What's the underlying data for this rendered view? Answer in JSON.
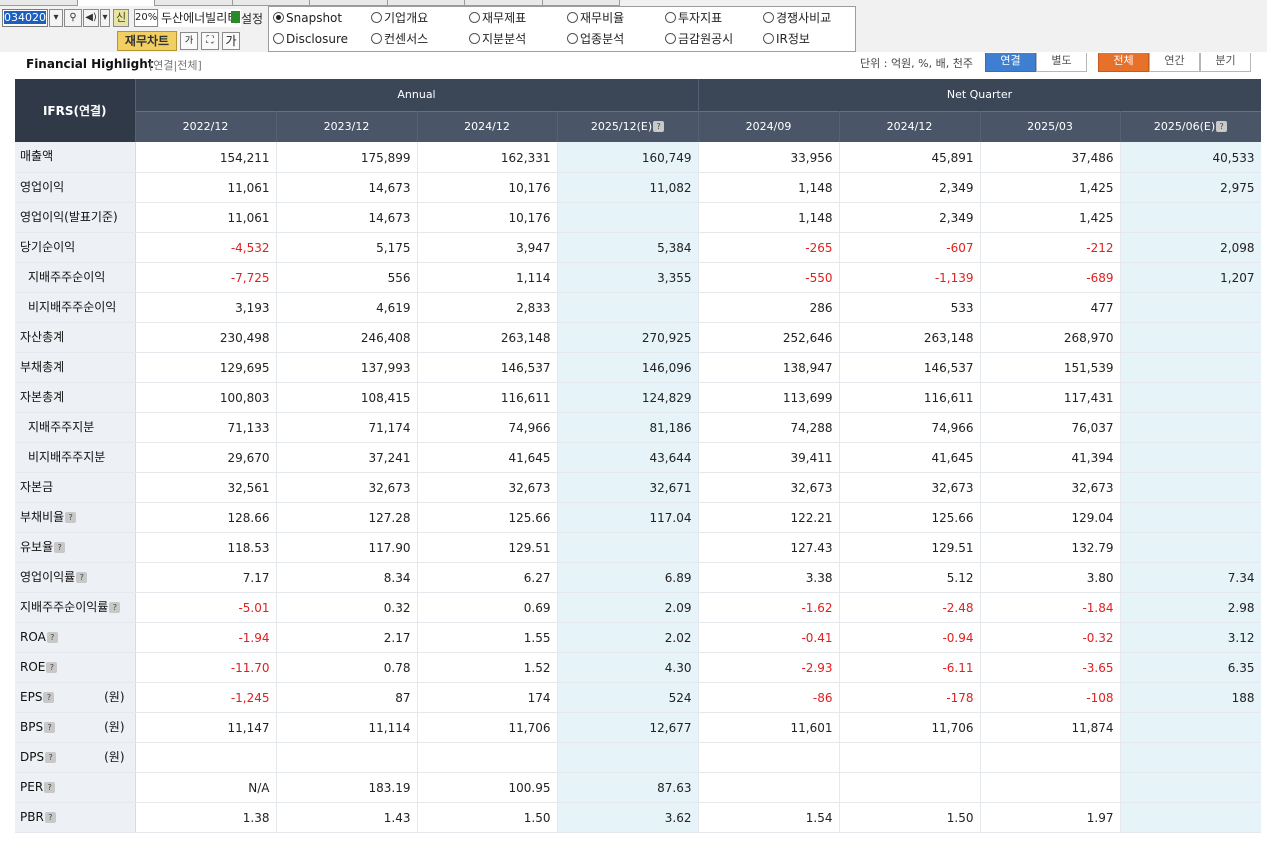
{
  "toolbar": {
    "stock_code": "034020",
    "s_label": "신",
    "pct_label": "20%",
    "stock_name": "두산에너빌리티",
    "setting_label": "설정",
    "fin_chart_label": "재무차트",
    "tool_font_small": "가",
    "tool_font_large": "가",
    "radios": [
      {
        "label": "Snapshot",
        "selected": true
      },
      {
        "label": "기업개요",
        "selected": false
      },
      {
        "label": "재무제표",
        "selected": false
      },
      {
        "label": "재무비율",
        "selected": false
      },
      {
        "label": "투자지표",
        "selected": false
      },
      {
        "label": "경쟁사비교",
        "selected": false
      },
      {
        "label": "Disclosure",
        "selected": false
      },
      {
        "label": "컨센서스",
        "selected": false
      },
      {
        "label": "지분분석",
        "selected": false
      },
      {
        "label": "업종분석",
        "selected": false
      },
      {
        "label": "금감원공시",
        "selected": false
      },
      {
        "label": "IR정보",
        "selected": false
      }
    ]
  },
  "header": {
    "title": "Financial Highlight",
    "subtitle": "[연결|전체]",
    "unit": "단위 : 억원, %, 배, 천주",
    "seg_consolidated": "연결",
    "seg_separate": "별도",
    "seg_all": "전체",
    "seg_annual": "연간",
    "seg_quarter": "분기"
  },
  "table": {
    "corner": "IFRS(연결)",
    "groups": [
      "Annual",
      "Net Quarter"
    ],
    "periods": [
      "2022/12",
      "2023/12",
      "2024/12",
      "2025/12(E)",
      "2024/09",
      "2024/12",
      "2025/03",
      "2025/06(E)"
    ],
    "rows": [
      {
        "label": "매출액",
        "values": [
          "154,211",
          "175,899",
          "162,331",
          "160,749",
          "33,956",
          "45,891",
          "37,486",
          "40,533"
        ]
      },
      {
        "label": "영업이익",
        "values": [
          "11,061",
          "14,673",
          "10,176",
          "11,082",
          "1,148",
          "2,349",
          "1,425",
          "2,975"
        ]
      },
      {
        "label": "영업이익(발표기준)",
        "values": [
          "11,061",
          "14,673",
          "10,176",
          "",
          "1,148",
          "2,349",
          "1,425",
          ""
        ]
      },
      {
        "label": "당기순이익",
        "values": [
          "-4,532",
          "5,175",
          "3,947",
          "5,384",
          "-265",
          "-607",
          "-212",
          "2,098"
        ]
      },
      {
        "label": "지배주주순이익",
        "indent": true,
        "values": [
          "-7,725",
          "556",
          "1,114",
          "3,355",
          "-550",
          "-1,139",
          "-689",
          "1,207"
        ]
      },
      {
        "label": "비지배주주순이익",
        "indent": true,
        "values": [
          "3,193",
          "4,619",
          "2,833",
          "",
          "286",
          "533",
          "477",
          ""
        ]
      },
      {
        "label": "자산총계",
        "values": [
          "230,498",
          "246,408",
          "263,148",
          "270,925",
          "252,646",
          "263,148",
          "268,970",
          ""
        ]
      },
      {
        "label": "부채총계",
        "values": [
          "129,695",
          "137,993",
          "146,537",
          "146,096",
          "138,947",
          "146,537",
          "151,539",
          ""
        ]
      },
      {
        "label": "자본총계",
        "values": [
          "100,803",
          "108,415",
          "116,611",
          "124,829",
          "113,699",
          "116,611",
          "117,431",
          ""
        ]
      },
      {
        "label": "지배주주지분",
        "indent": true,
        "values": [
          "71,133",
          "71,174",
          "74,966",
          "81,186",
          "74,288",
          "74,966",
          "76,037",
          ""
        ]
      },
      {
        "label": "비지배주주지분",
        "indent": true,
        "values": [
          "29,670",
          "37,241",
          "41,645",
          "43,644",
          "39,411",
          "41,645",
          "41,394",
          ""
        ]
      },
      {
        "label": "자본금",
        "values": [
          "32,561",
          "32,673",
          "32,673",
          "32,671",
          "32,673",
          "32,673",
          "32,673",
          ""
        ]
      },
      {
        "label": "부채비율",
        "help": true,
        "values": [
          "128.66",
          "127.28",
          "125.66",
          "117.04",
          "122.21",
          "125.66",
          "129.04",
          ""
        ]
      },
      {
        "label": "유보율",
        "help": true,
        "values": [
          "118.53",
          "117.90",
          "129.51",
          "",
          "127.43",
          "129.51",
          "132.79",
          ""
        ]
      },
      {
        "label": "영업이익률",
        "help": true,
        "values": [
          "7.17",
          "8.34",
          "6.27",
          "6.89",
          "3.38",
          "5.12",
          "3.80",
          "7.34"
        ]
      },
      {
        "label": "지배주주순이익률",
        "help": true,
        "values": [
          "-5.01",
          "0.32",
          "0.69",
          "2.09",
          "-1.62",
          "-2.48",
          "-1.84",
          "2.98"
        ]
      },
      {
        "label": "ROA",
        "help": true,
        "values": [
          "-1.94",
          "2.17",
          "1.55",
          "2.02",
          "-0.41",
          "-0.94",
          "-0.32",
          "3.12"
        ]
      },
      {
        "label": "ROE",
        "help": true,
        "values": [
          "-11.70",
          "0.78",
          "1.52",
          "4.30",
          "-2.93",
          "-6.11",
          "-3.65",
          "6.35"
        ]
      },
      {
        "label": "EPS",
        "help": true,
        "unit": "(원)",
        "values": [
          "-1,245",
          "87",
          "174",
          "524",
          "-86",
          "-178",
          "-108",
          "188"
        ]
      },
      {
        "label": "BPS",
        "help": true,
        "unit": "(원)",
        "values": [
          "11,147",
          "11,114",
          "11,706",
          "12,677",
          "11,601",
          "11,706",
          "11,874",
          ""
        ]
      },
      {
        "label": "DPS",
        "help": true,
        "unit": "(원)",
        "values": [
          "",
          "",
          "",
          "",
          "",
          "",
          "",
          ""
        ]
      },
      {
        "label": "PER",
        "help": true,
        "values": [
          "N/A",
          "183.19",
          "100.95",
          "87.63",
          "",
          "",
          "",
          ""
        ]
      },
      {
        "label": "PBR",
        "help": true,
        "values": [
          "1.38",
          "1.43",
          "1.50",
          "3.62",
          "1.54",
          "1.50",
          "1.97",
          ""
        ]
      }
    ]
  },
  "colors": {
    "header_bg": "#3b4657",
    "estimate_bg": "#e6f4fa",
    "negative": "#e02020",
    "label_bg": "#edf0f4"
  }
}
